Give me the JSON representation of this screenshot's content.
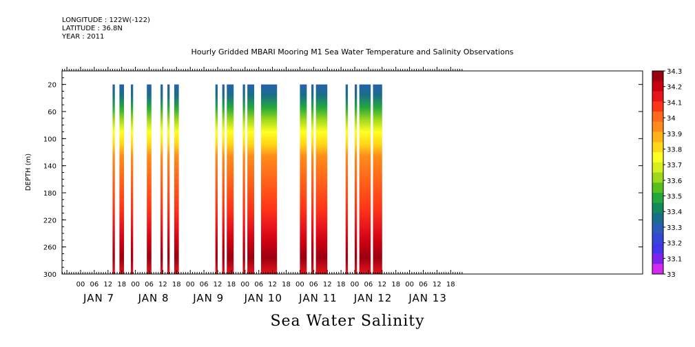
{
  "header": {
    "longitude": "LONGITUDE : 122W(-122)",
    "latitude": "LATITUDE : 36.8N",
    "year": "YEAR : 2011"
  },
  "chart_data": {
    "type": "heatmap",
    "title": "Hourly Gridded MBARI Mooring M1 Sea Water Temperature and Salinity Observations",
    "xlabel": "Sea Water Salinity",
    "ylabel": "DEPTH (m)",
    "y_range": [
      300,
      0
    ],
    "y_ticks": [
      20,
      60,
      100,
      140,
      180,
      220,
      260,
      300
    ],
    "x_hour_ticks": [
      "00",
      "06",
      "12",
      "18",
      "00",
      "06",
      "12",
      "18",
      "00",
      "06",
      "12",
      "18",
      "00",
      "06",
      "12",
      "18",
      "00",
      "06",
      "12",
      "18",
      "00",
      "06",
      "12",
      "18",
      "00",
      "06",
      "12",
      "18"
    ],
    "x_day_labels": [
      "JAN  7",
      "JAN  8",
      "JAN  9",
      "JAN 10",
      "JAN 11",
      "JAN 12",
      "JAN 13"
    ],
    "colorbar": {
      "levels": [
        "34.3",
        "34.2",
        "34.1",
        "34",
        "33.9",
        "33.8",
        "33.7",
        "33.6",
        "33.5",
        "33.4",
        "33.3",
        "33.2",
        "33.1",
        "33"
      ],
      "colors": [
        "#9a0012",
        "#c80010",
        "#e8141c",
        "#ff3418",
        "#ff6a1a",
        "#ff8c1a",
        "#ffb21c",
        "#ffd818",
        "#ffff22",
        "#d4f020",
        "#9ed81c",
        "#58c01e",
        "#24a83c",
        "#128a5c",
        "#1a6e88",
        "#2a5cb8",
        "#3448d8",
        "#4436e8",
        "#7e22ee",
        "#d22af0"
      ]
    },
    "data_segments_hours": [
      [
        14,
        15
      ],
      [
        17,
        19
      ],
      [
        22,
        23
      ],
      [
        29,
        31
      ],
      [
        35,
        36
      ],
      [
        38,
        39
      ],
      [
        41,
        43
      ],
      [
        59,
        60
      ],
      [
        62,
        63
      ],
      [
        64,
        67
      ],
      [
        71,
        72
      ],
      [
        73,
        76
      ],
      [
        79,
        86
      ],
      [
        96,
        99
      ],
      [
        101,
        102
      ],
      [
        103,
        108
      ],
      [
        116,
        117
      ],
      [
        120,
        121
      ],
      [
        122,
        127
      ],
      [
        128,
        132
      ]
    ],
    "notes": "Salinity increases with depth: ~33.2-33.3 near 20 m, ~33.9 near 120 m, ~34.0-34.1 near 180 m, ~34.2-34.3 near 260 m."
  }
}
